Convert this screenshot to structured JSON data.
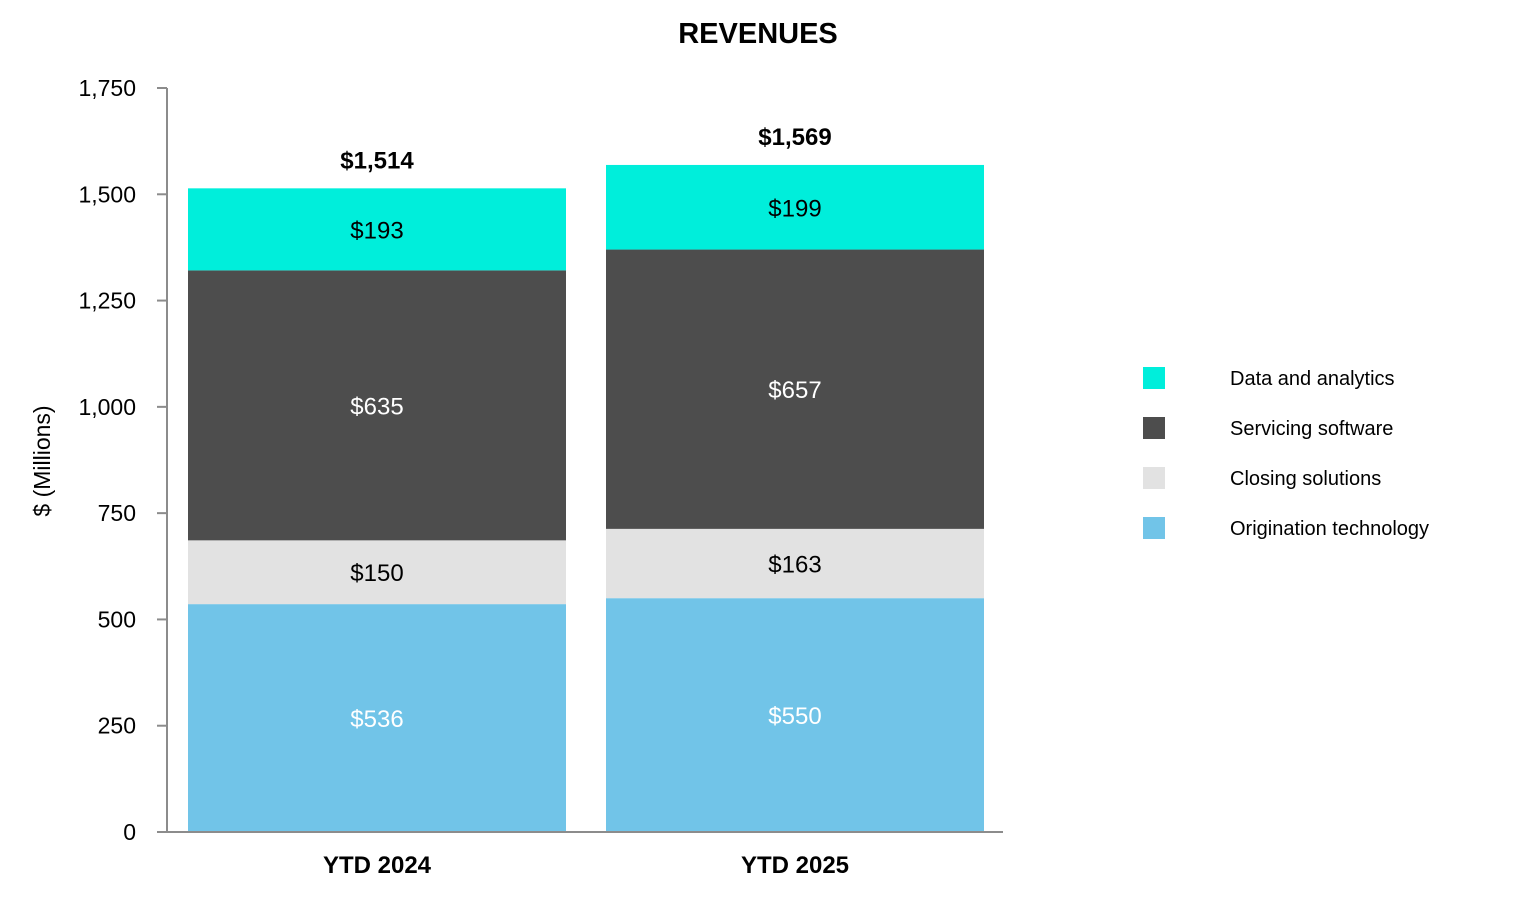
{
  "chart_data": {
    "type": "bar",
    "stacked": true,
    "title": "REVENUES",
    "ylabel": "$ (Millions)",
    "xlabel": "",
    "ylim": [
      0,
      1750
    ],
    "yticks": [
      0,
      250,
      500,
      750,
      1000,
      1250,
      1500,
      1750
    ],
    "ytick_labels": [
      "0",
      "250",
      "500",
      "750",
      "1,000",
      "1,250",
      "1,500",
      "1,750"
    ],
    "grid": false,
    "legend_position": "right",
    "categories": [
      "YTD 2024",
      "YTD 2025"
    ],
    "totals": [
      1514,
      1569
    ],
    "total_labels": [
      "$1,514",
      "$1,569"
    ],
    "series": [
      {
        "name": "Origination technology",
        "color": "#71c4e8",
        "label_color": "#ffffff",
        "values": [
          536,
          550
        ],
        "labels": [
          "$536",
          "$550"
        ]
      },
      {
        "name": "Closing solutions",
        "color": "#e2e2e2",
        "label_color": "#000000",
        "values": [
          150,
          163
        ],
        "labels": [
          "$150",
          "$163"
        ]
      },
      {
        "name": "Servicing software",
        "color": "#4d4d4d",
        "label_color": "#ffffff",
        "values": [
          635,
          657
        ],
        "labels": [
          "$635",
          "$657"
        ]
      },
      {
        "name": "Data and analytics",
        "color": "#00eedb",
        "label_color": "#000000",
        "values": [
          193,
          199
        ],
        "labels": [
          "$193",
          "$199"
        ]
      }
    ],
    "legend_order": [
      3,
      2,
      1,
      0
    ]
  }
}
